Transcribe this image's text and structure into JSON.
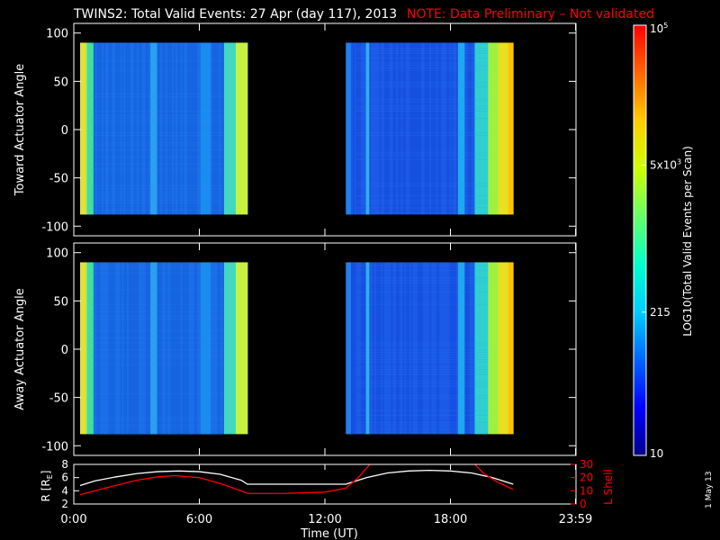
{
  "header": {
    "title": "TWINS2: Total Valid Events: 27 Apr (day 117), 2013",
    "note": "NOTE: Data Preliminary – Not validated",
    "note_color": "#ff0000"
  },
  "side_stamp": "1 May 13",
  "chart_data": [
    {
      "type": "heatmap",
      "panel": "top",
      "ylabel": "Toward Actuator Angle",
      "ylim": [
        -110,
        110
      ],
      "yticks": [
        100,
        50,
        0,
        -50,
        -100
      ],
      "x_unit": "hours UT",
      "xlim": [
        0,
        24
      ],
      "angle_range": [
        -88,
        90
      ],
      "data_blocks": [
        {
          "x_start": 0.3,
          "x_end": 8.3
        },
        {
          "x_start": 13.0,
          "x_end": 21.0
        }
      ],
      "colorscale": "log10 counts, 10 to 1e5"
    },
    {
      "type": "heatmap",
      "panel": "middle",
      "ylabel": "Away Actuator Angle",
      "ylim": [
        -110,
        110
      ],
      "yticks": [
        100,
        50,
        0,
        -50,
        -100
      ],
      "x_unit": "hours UT",
      "xlim": [
        0,
        24
      ],
      "angle_range": [
        -88,
        90
      ],
      "data_blocks": [
        {
          "x_start": 0.3,
          "x_end": 8.3
        },
        {
          "x_start": 13.0,
          "x_end": 21.0
        }
      ],
      "colorscale": "log10 counts, 10 to 1e5"
    },
    {
      "type": "line",
      "panel": "bottom",
      "xlabel": "Time (UT)",
      "xticks": [
        "0:00",
        "6:00",
        "12:00",
        "18:00",
        "23:59"
      ],
      "xtick_hours": [
        0,
        6,
        12,
        18,
        23.98
      ],
      "ylabel_left": "R [R_E]",
      "ylim_left": [
        2,
        8
      ],
      "yticks_left": [
        2,
        4,
        6,
        8
      ],
      "ylabel_right": "L Shell",
      "ylim_right": [
        0,
        30
      ],
      "yticks_right": [
        0,
        10,
        20,
        30
      ],
      "series": [
        {
          "axis": "left",
          "color": "#ffffff",
          "x": [
            0.3,
            1,
            2,
            3,
            4,
            5,
            6,
            7,
            8,
            8.3,
            13,
            14,
            15,
            16,
            17,
            18,
            19,
            20,
            21
          ],
          "y": [
            4.8,
            5.5,
            6.1,
            6.6,
            6.9,
            7.0,
            6.9,
            6.5,
            5.6,
            5.0,
            5.0,
            6.0,
            6.7,
            7.0,
            7.1,
            7.0,
            6.7,
            6.0,
            5.0
          ]
        },
        {
          "axis": "right",
          "color": "#ff0000",
          "x": [
            0.3,
            1,
            2,
            3,
            4,
            4.8,
            6,
            7,
            8,
            8.3,
            10,
            12,
            13,
            13.6,
            14.2,
            19.1,
            19.6,
            20.2,
            21
          ],
          "y": [
            7,
            10,
            14,
            18,
            20.5,
            21.5,
            20,
            15.5,
            10,
            8,
            8,
            9,
            12,
            20,
            31,
            31,
            23,
            17,
            11
          ]
        }
      ]
    },
    {
      "type": "colorbar",
      "label": "LOG10(Total Valid Events per Scan)",
      "tick_labels": [
        "10",
        "215",
        "5x10^3",
        "10^5"
      ],
      "tick_values": [
        10,
        215,
        5000,
        100000
      ],
      "range": [
        10,
        100000
      ],
      "colors": [
        "#00008c",
        "#0000ff",
        "#0066ff",
        "#00ccff",
        "#00ffcc",
        "#66ff66",
        "#ccff00",
        "#ffcc00",
        "#ff6600",
        "#ff0000"
      ]
    }
  ]
}
